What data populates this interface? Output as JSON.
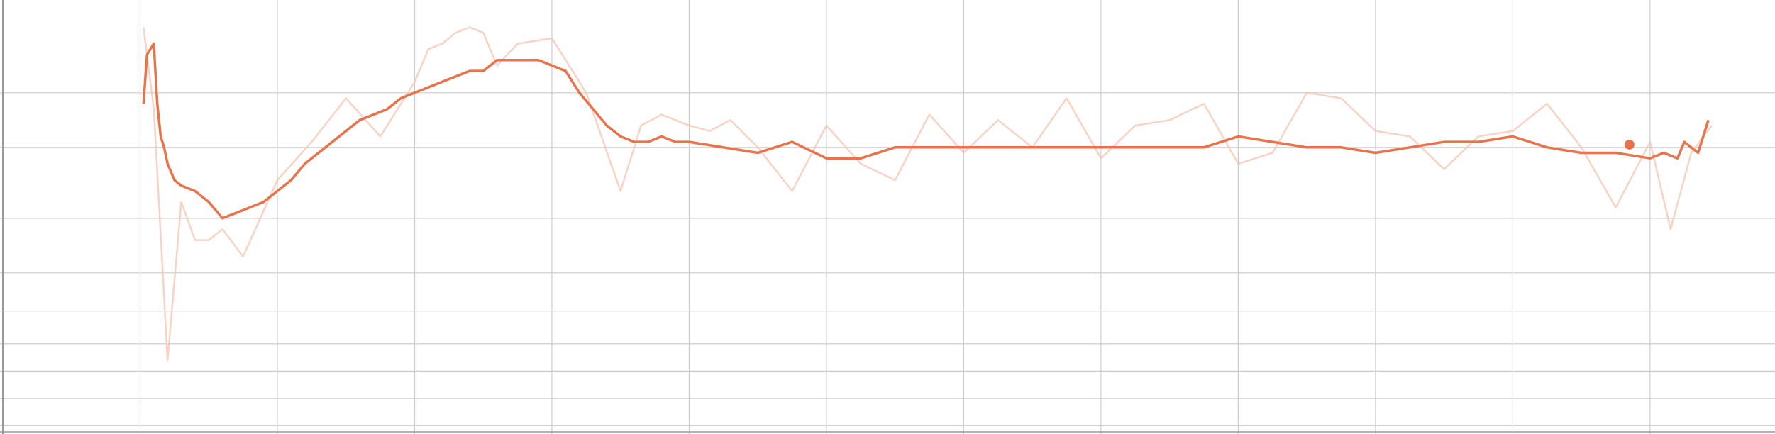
{
  "chart_data": {
    "type": "line",
    "title": "",
    "xlabel": "",
    "ylabel": "",
    "grid": true,
    "legend": "none",
    "colors": {
      "smoothed": "#e8734a",
      "raw": "#f6c4b0",
      "grid": "#cccccc",
      "axis": "#999999"
    },
    "xlim": [
      0,
      25.8
    ],
    "ylim": [
      0,
      7.9
    ],
    "x_gridlines": [
      0,
      2,
      4,
      6,
      8,
      10,
      12,
      14,
      16,
      18,
      20,
      22,
      24
    ],
    "y_gridlines": [
      0.1,
      0.6,
      1.1,
      1.6,
      2.2,
      2.9,
      3.9,
      5.2,
      6.2
    ],
    "series": [
      {
        "role": "raw",
        "x": [
          2.05,
          2.2,
          2.4,
          2.6,
          2.8,
          3.0,
          3.2,
          3.5,
          4.0,
          4.5,
          5.0,
          5.5,
          6.0,
          6.2,
          6.4,
          6.6,
          6.8,
          7.0,
          7.2,
          7.5,
          8.0,
          8.5,
          9.0,
          9.3,
          9.6,
          10.0,
          10.3,
          10.6,
          11.0,
          11.5,
          12.0,
          12.5,
          13.0,
          13.5,
          14.0,
          14.5,
          15.0,
          15.5,
          16.0,
          16.5,
          17.0,
          17.5,
          18.0,
          18.5,
          19.0,
          19.5,
          20.0,
          20.5,
          21.0,
          21.5,
          22.0,
          22.5,
          23.0,
          23.5,
          24.0,
          24.3,
          24.6,
          24.9
        ],
        "y": [
          7.4,
          5.9,
          1.3,
          4.2,
          3.5,
          3.5,
          3.7,
          3.2,
          4.6,
          5.3,
          6.1,
          5.4,
          6.4,
          7.0,
          7.1,
          7.3,
          7.4,
          7.3,
          6.7,
          7.1,
          7.2,
          6.2,
          4.4,
          5.6,
          5.8,
          5.6,
          5.5,
          5.7,
          5.2,
          4.4,
          5.6,
          4.9,
          4.6,
          5.8,
          5.1,
          5.7,
          5.2,
          6.1,
          5.0,
          5.6,
          5.7,
          6.0,
          4.9,
          5.1,
          6.2,
          6.1,
          5.5,
          5.4,
          4.8,
          5.4,
          5.5,
          6.0,
          5.2,
          4.1,
          5.3,
          3.7,
          5.1,
          5.6
        ]
      },
      {
        "role": "smoothed",
        "x": [
          2.05,
          2.1,
          2.15,
          2.2,
          2.25,
          2.3,
          2.35,
          2.4,
          2.5,
          2.6,
          2.8,
          3.0,
          3.2,
          3.4,
          3.6,
          3.8,
          4.0,
          4.2,
          4.4,
          4.6,
          4.8,
          5.0,
          5.2,
          5.4,
          5.6,
          5.8,
          6.0,
          6.2,
          6.4,
          6.6,
          6.8,
          7.0,
          7.2,
          7.4,
          7.6,
          7.8,
          8.0,
          8.2,
          8.4,
          8.6,
          8.8,
          9.0,
          9.2,
          9.4,
          9.6,
          9.8,
          10.0,
          10.5,
          11.0,
          11.5,
          12.0,
          12.5,
          13.0,
          13.5,
          14.0,
          14.5,
          15.0,
          15.5,
          16.0,
          16.5,
          17.0,
          17.5,
          18.0,
          18.5,
          19.0,
          19.5,
          20.0,
          20.5,
          21.0,
          21.5,
          22.0,
          22.5,
          23.0,
          23.5,
          24.0,
          24.2,
          24.4,
          24.5,
          24.7,
          24.85
        ],
        "y": [
          6.0,
          6.9,
          7.0,
          7.1,
          6.0,
          5.4,
          5.2,
          4.9,
          4.6,
          4.5,
          4.4,
          4.2,
          3.9,
          4.0,
          4.1,
          4.2,
          4.4,
          4.6,
          4.9,
          5.1,
          5.3,
          5.5,
          5.7,
          5.8,
          5.9,
          6.1,
          6.2,
          6.3,
          6.4,
          6.5,
          6.6,
          6.6,
          6.8,
          6.8,
          6.8,
          6.8,
          6.7,
          6.6,
          6.2,
          5.9,
          5.6,
          5.4,
          5.3,
          5.3,
          5.4,
          5.3,
          5.3,
          5.2,
          5.1,
          5.3,
          5.0,
          5.0,
          5.2,
          5.2,
          5.2,
          5.2,
          5.2,
          5.2,
          5.2,
          5.2,
          5.2,
          5.2,
          5.4,
          5.3,
          5.2,
          5.2,
          5.1,
          5.2,
          5.3,
          5.3,
          5.4,
          5.2,
          5.1,
          5.1,
          5.0,
          5.1,
          5.0,
          5.3,
          5.1,
          5.7
        ]
      }
    ],
    "highlight_point": {
      "x": 23.7,
      "y": 5.25
    }
  }
}
